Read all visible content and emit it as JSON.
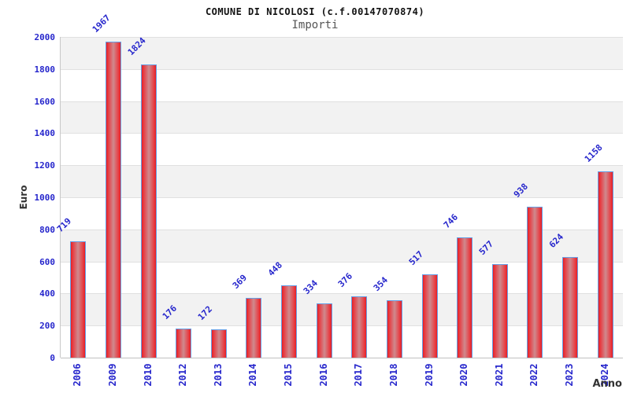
{
  "chart_data": {
    "type": "bar",
    "title": "COMUNE DI NICOLOSI (c.f.00147070874)",
    "subtitle": "Importi",
    "xlabel": "Anno",
    "ylabel": "Euro",
    "categories": [
      "2006",
      "2009",
      "2010",
      "2012",
      "2013",
      "2014",
      "2015",
      "2016",
      "2017",
      "2018",
      "2019",
      "2020",
      "2021",
      "2022",
      "2023",
      "2024"
    ],
    "values": [
      719,
      1967,
      1824,
      176,
      172,
      369,
      448,
      334,
      376,
      354,
      517,
      746,
      577,
      938,
      624,
      1158
    ],
    "ylim": [
      0,
      2000
    ],
    "ytick_step": 200,
    "grid": "horizontal-alternating-bands",
    "legend": "none",
    "colors": {
      "bar_edge_red": "#e41f25",
      "bar_center": "#cf8a8e",
      "bar_border_blue": "#66a0e6",
      "label_blue": "#2626cc",
      "band_gray": "#f2f2f2",
      "band_white": "#ffffff",
      "gridline": "#e0e0e0",
      "axis_text": "#333333",
      "title_color": "#111111",
      "subtitle_color": "#555555"
    }
  }
}
